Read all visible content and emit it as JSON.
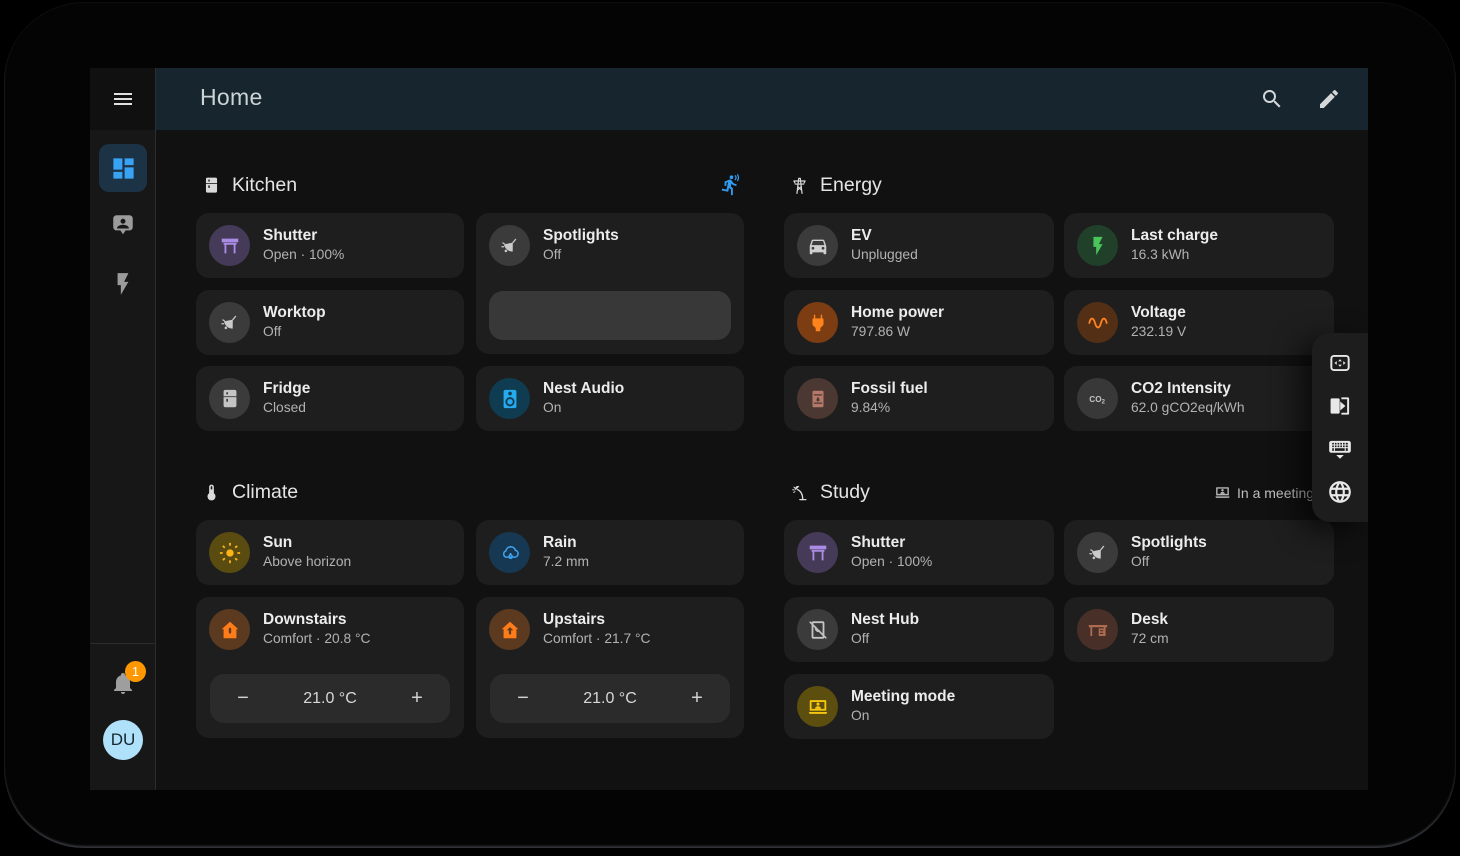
{
  "colors": {
    "header_teal": "#17262e",
    "accent_blue": "#38a3f4",
    "badge_orange": "#ff9800",
    "avatar_blue": "#afe1fa",
    "shutter_purple": "#ab8ce4",
    "audio_blue": "#27a9ee",
    "charge_green": "#4bc45c",
    "power_orange": "#ff841c",
    "sun_yellow": "#fdb515",
    "rain_blue": "#3ea1ec",
    "heat_orange": "#ff7d19",
    "meeting_yellow": "#f5c711",
    "alert_badge_orange": "#f4511e"
  },
  "header": {
    "title": "Home",
    "search_icon": "magnify",
    "edit_icon": "pencil"
  },
  "sidebar": {
    "menu_icon": "menu",
    "items": [
      {
        "icon": "view-dashboard",
        "selected": true
      },
      {
        "icon": "person-bubble",
        "selected": false
      },
      {
        "icon": "flash",
        "selected": false
      }
    ],
    "notification_icon": "bell",
    "notification_badge": "1",
    "avatar_initials": "DU"
  },
  "kitchen": {
    "title": "Kitchen",
    "icon": "fridge",
    "motion_icon": "motion-sensor",
    "tiles": {
      "shutter": {
        "name": "Shutter",
        "state": "Open · 100%",
        "icon": "window-shutter"
      },
      "spotlights": {
        "name": "Spotlights",
        "state": "Off",
        "icon": "ceiling-light"
      },
      "worktop": {
        "name": "Worktop",
        "state": "Off",
        "icon": "ceiling-light"
      },
      "fridge": {
        "name": "Fridge",
        "state": "Closed",
        "icon": "fridge"
      },
      "nest_audio": {
        "name": "Nest Audio",
        "state": "On",
        "icon": "speaker"
      }
    }
  },
  "energy": {
    "title": "Energy",
    "icon": "transmission-tower",
    "tiles": {
      "ev": {
        "name": "EV",
        "state": "Unplugged",
        "icon": "car"
      },
      "last_charge": {
        "name": "Last charge",
        "state": "16.3 kWh",
        "icon": "flash"
      },
      "home_power": {
        "name": "Home power",
        "state": "797.86 W",
        "icon": "power-plug"
      },
      "voltage": {
        "name": "Voltage",
        "state": "232.19 V",
        "icon": "sine-wave"
      },
      "fossil_fuel": {
        "name": "Fossil fuel",
        "state": "9.84%",
        "icon": "barrel"
      },
      "co2": {
        "name": "CO2 Intensity",
        "state": "62.0 gCO2eq/kWh",
        "icon": "co2-molecule"
      }
    }
  },
  "climate": {
    "title": "Climate",
    "icon": "thermometer",
    "tiles": {
      "sun": {
        "name": "Sun",
        "state": "Above horizon",
        "icon": "sun"
      },
      "rain": {
        "name": "Rain",
        "state": "7.2 mm",
        "icon": "weather-rainy"
      },
      "downstairs": {
        "name": "Downstairs",
        "state": "Comfort · 20.8 °C",
        "icon": "home-thermometer",
        "badge_icon": "fire",
        "target": "21.0 °C",
        "minus": "−",
        "plus": "+"
      },
      "upstairs": {
        "name": "Upstairs",
        "state": "Comfort · 21.7 °C",
        "icon": "home-arrow-up",
        "badge_icon": "clock",
        "target": "21.0 °C",
        "minus": "−",
        "plus": "+"
      }
    }
  },
  "study": {
    "title": "Study",
    "icon": "desk-lamp",
    "status": "In a meeting",
    "status_icon": "laptop-account",
    "tiles": {
      "shutter": {
        "name": "Shutter",
        "state": "Open · 100%",
        "icon": "window-shutter"
      },
      "spotlights": {
        "name": "Spotlights",
        "state": "Off",
        "icon": "ceiling-light"
      },
      "nest_hub": {
        "name": "Nest Hub",
        "state": "Off",
        "icon": "tablet-off"
      },
      "desk": {
        "name": "Desk",
        "state": "72 cm",
        "icon": "desk"
      },
      "meeting_mode": {
        "name": "Meeting mode",
        "state": "On",
        "icon": "laptop-account"
      }
    }
  },
  "kiosk_toolbar": {
    "icons": [
      {
        "icon": "fit-screen"
      },
      {
        "icon": "screen-rotation"
      },
      {
        "icon": "keyboard-hide"
      },
      {
        "icon": "web"
      }
    ]
  }
}
